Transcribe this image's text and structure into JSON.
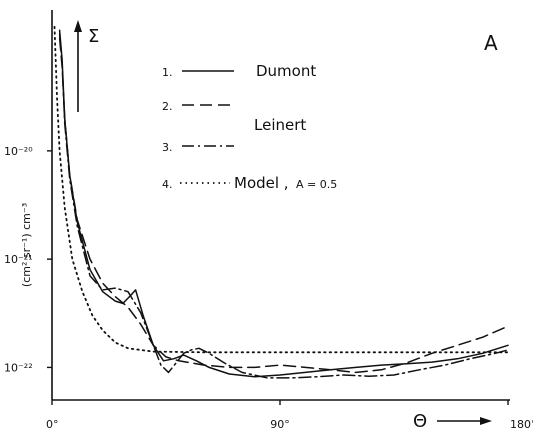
{
  "chart_data": {
    "type": "line",
    "panel_label": "A",
    "ylabel": "(cm² sr⁻¹) cm⁻³",
    "y_symbol": "Σ",
    "x_symbol": "Θ",
    "y_scale": "log",
    "ylim": [
      5e-23,
      2e-19
    ],
    "xlim": [
      0,
      180
    ],
    "x_ticks": [
      "0°",
      "90°",
      "180°"
    ],
    "y_ticks": [
      {
        "value": 1e-20,
        "label": "10⁻²⁰"
      },
      {
        "value": 1e-21,
        "label": "10⁻²¹"
      },
      {
        "value": 1e-22,
        "label": "10⁻²²"
      }
    ],
    "legend": [
      {
        "number": "1.",
        "text": "Dumont"
      },
      {
        "number": "2.",
        "text": ""
      },
      {
        "number": "3.",
        "text": "Leinert"
      },
      {
        "number": "4.",
        "text": "Model ,",
        "extra": "A = 0.5"
      }
    ],
    "series": [
      {
        "number": "1",
        "style": "solid",
        "points": [
          [
            3,
            1.3e-19
          ],
          [
            4,
            7e-20
          ],
          [
            5,
            2e-20
          ],
          [
            7,
            6e-21
          ],
          [
            10,
            2.2e-21
          ],
          [
            15,
            8e-22
          ],
          [
            20,
            5e-22
          ],
          [
            25,
            4.1e-22
          ],
          [
            28,
            3.9e-22
          ],
          [
            31,
            4.6e-22
          ],
          [
            33,
            5.2e-22
          ],
          [
            36,
            3e-22
          ],
          [
            40,
            1.6e-22
          ],
          [
            44,
            1.15e-22
          ],
          [
            48,
            1.2e-22
          ],
          [
            52,
            1.3e-22
          ],
          [
            57,
            1.15e-22
          ],
          [
            62,
            1e-22
          ],
          [
            70,
            8.7e-23
          ],
          [
            80,
            8.2e-23
          ],
          [
            90,
            8.5e-23
          ],
          [
            100,
            9e-23
          ],
          [
            110,
            9.5e-23
          ],
          [
            120,
            1e-22
          ],
          [
            130,
            1.05e-22
          ],
          [
            140,
            1.08e-22
          ],
          [
            150,
            1.12e-22
          ],
          [
            160,
            1.2e-22
          ],
          [
            170,
            1.35e-22
          ],
          [
            180,
            1.6e-22
          ]
        ]
      },
      {
        "number": "2",
        "style": "dashed",
        "points": [
          [
            3,
            1.1e-19
          ],
          [
            4,
            6e-20
          ],
          [
            5,
            2e-20
          ],
          [
            7,
            6e-21
          ],
          [
            10,
            2.3e-21
          ],
          [
            15,
            1e-21
          ],
          [
            20,
            6e-22
          ],
          [
            25,
            4.5e-22
          ],
          [
            30,
            3.6e-22
          ],
          [
            35,
            2.5e-22
          ],
          [
            40,
            1.6e-22
          ],
          [
            45,
            1.25e-22
          ],
          [
            50,
            1.15e-22
          ],
          [
            55,
            1.1e-22
          ],
          [
            60,
            1.05e-22
          ],
          [
            70,
            1e-22
          ],
          [
            80,
            1e-22
          ],
          [
            90,
            1.05e-22
          ],
          [
            100,
            1e-22
          ],
          [
            110,
            9.5e-23
          ],
          [
            120,
            9e-23
          ],
          [
            130,
            9.5e-23
          ],
          [
            140,
            1.1e-22
          ],
          [
            150,
            1.35e-22
          ],
          [
            160,
            1.6e-22
          ],
          [
            170,
            1.9e-22
          ],
          [
            180,
            2.4e-22
          ]
        ]
      },
      {
        "number": "3",
        "style": "dashdot",
        "points": [
          [
            3,
            1.2e-19
          ],
          [
            4,
            6.5e-20
          ],
          [
            5,
            1.8e-20
          ],
          [
            7,
            5.5e-21
          ],
          [
            10,
            2e-21
          ],
          [
            15,
            7e-22
          ],
          [
            20,
            5.2e-22
          ],
          [
            25,
            5.4e-22
          ],
          [
            30,
            5e-22
          ],
          [
            35,
            3.2e-22
          ],
          [
            40,
            1.6e-22
          ],
          [
            43,
            1.05e-22
          ],
          [
            46,
            9e-23
          ],
          [
            49,
            1.1e-22
          ],
          [
            52,
            1.35e-22
          ],
          [
            55,
            1.45e-22
          ],
          [
            58,
            1.5e-22
          ],
          [
            62,
            1.35e-22
          ],
          [
            68,
            1.1e-22
          ],
          [
            75,
            9e-23
          ],
          [
            85,
            8e-23
          ],
          [
            95,
            8e-23
          ],
          [
            105,
            8.2e-23
          ],
          [
            115,
            8.5e-23
          ],
          [
            125,
            8.3e-23
          ],
          [
            135,
            8.5e-23
          ],
          [
            145,
            9.5e-23
          ],
          [
            155,
            1.05e-22
          ],
          [
            165,
            1.2e-22
          ],
          [
            175,
            1.35e-22
          ],
          [
            180,
            1.45e-22
          ]
        ]
      },
      {
        "number": "4",
        "style": "dotted",
        "points": [
          [
            1,
            1.4e-19
          ],
          [
            2,
            3e-20
          ],
          [
            3,
            1e-20
          ],
          [
            5,
            3e-21
          ],
          [
            8,
            1e-21
          ],
          [
            12,
            5e-22
          ],
          [
            16,
            3e-22
          ],
          [
            20,
            2.2e-22
          ],
          [
            25,
            1.7e-22
          ],
          [
            30,
            1.5e-22
          ],
          [
            40,
            1.4e-22
          ],
          [
            60,
            1.38e-22
          ],
          [
            90,
            1.38e-22
          ],
          [
            120,
            1.38e-22
          ],
          [
            150,
            1.38e-22
          ],
          [
            180,
            1.38e-22
          ]
        ]
      }
    ]
  }
}
